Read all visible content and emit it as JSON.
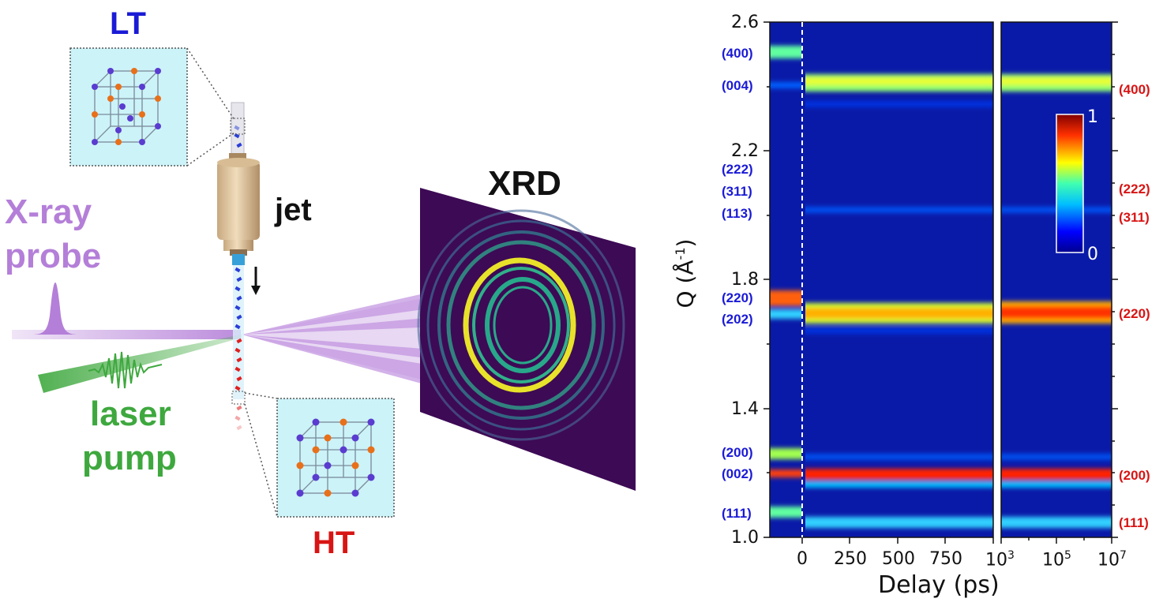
{
  "labels": {
    "lt": "LT",
    "ht": "HT",
    "jet": "jet",
    "xrd": "XRD",
    "xray_line1": "X-ray",
    "xray_line2": "probe",
    "laser_line1": "laser",
    "laser_line2": "pump"
  },
  "colors": {
    "lt_blue": "#1a1ad6",
    "ht_red": "#d81414",
    "xray_purple": "#b47fd8",
    "laser_green": "#3ea83e",
    "detector_bg": "#3d0a55"
  },
  "heatmap": {
    "ylabel_main": "Q (Å",
    "ylabel_sup": "-1",
    "ylabel_end": ")",
    "xlabel": "Delay (ps)",
    "y_ticks": [
      "2.6",
      "2.2",
      "1.8",
      "1.4",
      "1.0"
    ],
    "x_ticks_left": [
      "0",
      "250",
      "500",
      "750"
    ],
    "x_ticks_right": [
      {
        "base": "10",
        "exp": "3"
      },
      {
        "base": "10",
        "exp": "5"
      },
      {
        "base": "10",
        "exp": "7"
      }
    ],
    "left_miller_labels": [
      "(400)",
      "(004)",
      "(222)",
      "(311)",
      "(113)",
      "(220)",
      "(202)",
      "(200)",
      "(002)",
      "(111)"
    ],
    "right_miller_labels": [
      "(400)",
      "(222)",
      "(311)",
      "(220)",
      "(200)",
      "(111)"
    ],
    "colorbar": {
      "max": "1",
      "min": "0"
    }
  },
  "chart_data": {
    "type": "heatmap",
    "xlabel": "Delay (ps)",
    "ylabel": "Q (Å-1)",
    "ylim": [
      1.0,
      2.6
    ],
    "xlim_linear_ps": [
      -100,
      1000
    ],
    "xlim_log_ps": [
      1000,
      10000000
    ],
    "colorbar_range": [
      0,
      1
    ],
    "bands_before_t0": [
      {
        "label": "(400)",
        "q": 2.5,
        "intensity": 0.55
      },
      {
        "label": "(004)",
        "q": 2.4,
        "intensity": 0.3
      },
      {
        "label": "(220)",
        "q": 1.75,
        "intensity": 0.9
      },
      {
        "label": "(202)",
        "q": 1.71,
        "intensity": 0.5
      },
      {
        "label": "(200)",
        "q": 1.26,
        "intensity": 0.6
      },
      {
        "label": "(002)",
        "q": 1.2,
        "intensity": 0.95
      },
      {
        "label": "(111)",
        "q": 1.07,
        "intensity": 0.5
      }
    ],
    "bands_after_t0": [
      {
        "label": "(400)",
        "q": 2.42,
        "intensity": 0.55
      },
      {
        "label": "(220)",
        "q": 1.71,
        "intensity": 0.85
      },
      {
        "label": "(200)",
        "q": 1.2,
        "intensity": 1.0
      },
      {
        "label": "(111)",
        "q": 1.04,
        "intensity": 0.4
      }
    ]
  }
}
